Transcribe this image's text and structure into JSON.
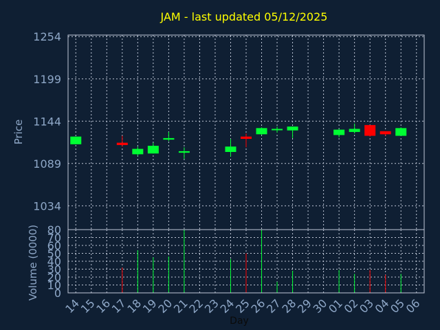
{
  "colors": {
    "background": "#0f1f33",
    "axis_text": "#8fa8c8",
    "title": "#ffff00",
    "grid": "#c0c8d8",
    "up": "#00ff33",
    "down": "#ff0000",
    "frame": "#c0c8d8"
  },
  "chart_data": {
    "type": "candlestick",
    "title": "JAM - last updated 05/12/2025",
    "xlabel": "Day",
    "ylabel": "Price",
    "volume_label": "Volume (0000)",
    "grid": true,
    "price_ticks": [
      1034,
      1089,
      1144,
      1199,
      1254
    ],
    "price_range": [
      1003,
      1256
    ],
    "volume_ticks": [
      0,
      10,
      20,
      30,
      40,
      50,
      60,
      70,
      80
    ],
    "volume_range": [
      0,
      80
    ],
    "days": [
      "14",
      "15",
      "16",
      "17",
      "18",
      "19",
      "20",
      "21",
      "22",
      "23",
      "24",
      "25",
      "26",
      "27",
      "28",
      "29",
      "30",
      "01",
      "02",
      "03",
      "04",
      "05",
      "06"
    ],
    "candles": [
      {
        "day": "14",
        "open": 1114,
        "high": 1124,
        "low": 1114,
        "close": 1124,
        "volume": 0
      },
      {
        "day": "17",
        "open": 1116,
        "high": 1125,
        "low": 1111,
        "close": 1113,
        "volume": 32
      },
      {
        "day": "18",
        "open": 1101,
        "high": 1111,
        "low": 1099,
        "close": 1108,
        "volume": 54
      },
      {
        "day": "19",
        "open": 1102,
        "high": 1116,
        "low": 1102,
        "close": 1112,
        "volume": 45
      },
      {
        "day": "20",
        "open": 1120,
        "high": 1130,
        "low": 1118,
        "close": 1122,
        "volume": 46
      },
      {
        "day": "21",
        "open": 1103,
        "high": 1110,
        "low": 1095,
        "close": 1105,
        "volume": 80
      },
      {
        "day": "24",
        "open": 1104,
        "high": 1121,
        "low": 1098,
        "close": 1111,
        "volume": 43
      },
      {
        "day": "25",
        "open": 1124,
        "high": 1128,
        "low": 1110,
        "close": 1121,
        "volume": 50
      },
      {
        "day": "26",
        "open": 1127,
        "high": 1136,
        "low": 1126,
        "close": 1135,
        "volume": 80
      },
      {
        "day": "27",
        "open": 1133,
        "high": 1137,
        "low": 1129,
        "close": 1134,
        "volume": 14
      },
      {
        "day": "28",
        "open": 1132,
        "high": 1137,
        "low": 1122,
        "close": 1137,
        "volume": 28
      },
      {
        "day": "01",
        "open": 1126,
        "high": 1134,
        "low": 1123,
        "close": 1133,
        "volume": 29
      },
      {
        "day": "02",
        "open": 1130,
        "high": 1141,
        "low": 1128,
        "close": 1134,
        "volume": 24
      },
      {
        "day": "03",
        "open": 1139,
        "high": 1139,
        "low": 1124,
        "close": 1125,
        "volume": 29
      },
      {
        "day": "04",
        "open": 1131,
        "high": 1131,
        "low": 1125,
        "close": 1127,
        "volume": 23
      },
      {
        "day": "05",
        "open": 1125,
        "high": 1136,
        "low": 1125,
        "close": 1135,
        "volume": 24
      }
    ]
  }
}
